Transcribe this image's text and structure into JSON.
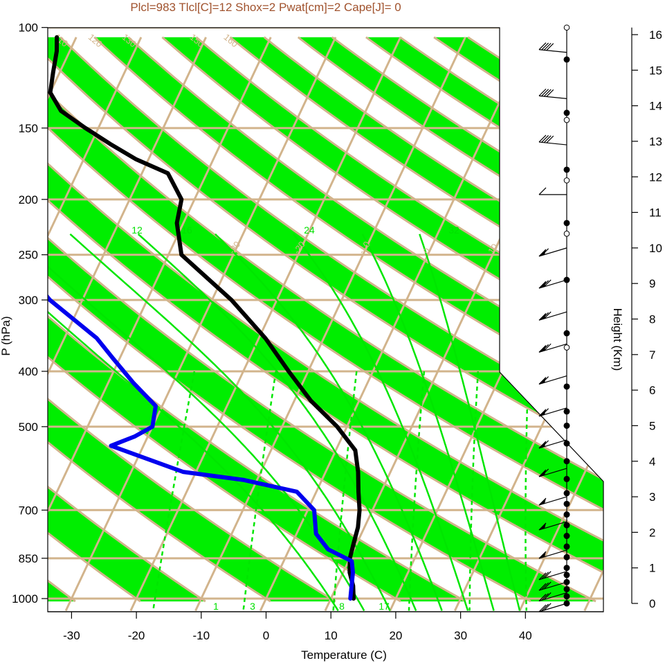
{
  "title": "Plcl=983 Tlcl[C]=12 Shox=2 Pwat[cm]=2 Cape[J]= 0",
  "colors": {
    "band": "#00ee00",
    "isopleth": "#d2b48c",
    "mixing_ratio": "#00e600",
    "temperature": "#000000",
    "dewpoint": "#0000ee",
    "title": "#a0522d"
  },
  "chart_data": {
    "type": "line",
    "subtype": "skew-T log-P sounding",
    "title": "Plcl=983 Tlcl[C]=12 Shox=2 Pwat[cm]=2 Cape[J]= 0",
    "xlabel": "Temperature (C)",
    "ylabel": "P (hPa)",
    "y2label": "Height (Km)",
    "xlim": [
      -33,
      52
    ],
    "ylim": [
      1050,
      100
    ],
    "yscale": "log",
    "x_ticks": [
      -30,
      -20,
      -10,
      0,
      10,
      20,
      30,
      40
    ],
    "y_ticks": [
      100,
      150,
      200,
      250,
      300,
      400,
      500,
      700,
      850,
      1000
    ],
    "height_ticks": [
      0,
      1,
      2,
      3,
      4,
      5,
      6,
      7,
      8,
      9,
      10,
      11,
      12,
      13,
      14,
      15,
      16
    ],
    "isotherm_labels": [
      -30,
      -20,
      -10,
      0,
      10,
      20,
      30
    ],
    "theta_labels": [
      30,
      40,
      50,
      60,
      70,
      80,
      90,
      100,
      110,
      120,
      130,
      150,
      160
    ],
    "mixing_ratio_top_labels": [
      12,
      16,
      24,
      32
    ],
    "mixing_ratio_bottom_labels": [
      1,
      3,
      8,
      17
    ],
    "series": [
      {
        "variable": "temperature",
        "points": [
          [
            1000,
            13.5
          ],
          [
            950,
            12.5
          ],
          [
            900,
            11.0
          ],
          [
            850,
            10.0
          ],
          [
            800,
            9.5
          ],
          [
            750,
            9.0
          ],
          [
            700,
            8.0
          ],
          [
            650,
            6.5
          ],
          [
            600,
            5.0
          ],
          [
            550,
            3.0
          ],
          [
            500,
            -1.5
          ],
          [
            450,
            -7.5
          ],
          [
            400,
            -13.0
          ],
          [
            350,
            -19.0
          ],
          [
            300,
            -27.0
          ],
          [
            250,
            -38.0
          ],
          [
            220,
            -41.0
          ],
          [
            200,
            -42.0
          ],
          [
            180,
            -46.0
          ],
          [
            170,
            -52.0
          ],
          [
            160,
            -57.0
          ],
          [
            150,
            -62.0
          ],
          [
            140,
            -67.0
          ],
          [
            130,
            -70.0
          ],
          [
            120,
            -71.0
          ],
          [
            110,
            -72.0
          ],
          [
            104,
            -73.0
          ]
        ]
      },
      {
        "variable": "dewpoint",
        "points": [
          [
            1000,
            13.0
          ],
          [
            900,
            11.5
          ],
          [
            860,
            10.5
          ],
          [
            820,
            6.0
          ],
          [
            770,
            3.0
          ],
          [
            700,
            1.0
          ],
          [
            650,
            -3.0
          ],
          [
            620,
            -12.0
          ],
          [
            600,
            -22.0
          ],
          [
            540,
            -35.0
          ],
          [
            520,
            -32.0
          ],
          [
            500,
            -30.0
          ],
          [
            460,
            -31.0
          ],
          [
            420,
            -36.0
          ],
          [
            380,
            -41.0
          ],
          [
            350,
            -45.0
          ],
          [
            300,
            -55.0
          ],
          [
            250,
            -64.0
          ],
          [
            220,
            -72.0
          ],
          [
            200,
            -78.0
          ],
          [
            185,
            -84.0
          ],
          [
            175,
            -88.0
          ],
          [
            150,
            -94.0
          ],
          [
            130,
            -99.0
          ],
          [
            104,
            -109.0
          ]
        ]
      }
    ],
    "wind_barbs": [
      {
        "km": 0.0,
        "barbs": 3
      },
      {
        "km": 0.3,
        "barbs": 3
      },
      {
        "km": 0.6,
        "barbs": 3
      },
      {
        "km": 0.9,
        "barbs": 3
      },
      {
        "km": 1.5,
        "barbs": 1
      },
      {
        "km": 2.3,
        "barbs": 1
      },
      {
        "km": 3.0,
        "barbs": 1
      },
      {
        "km": 3.8,
        "barbs": 2
      },
      {
        "km": 4.6,
        "barbs": 2
      },
      {
        "km": 5.5,
        "barbs": 2
      },
      {
        "km": 6.4,
        "barbs": 2
      },
      {
        "km": 7.3,
        "barbs": 3
      },
      {
        "km": 8.2,
        "barbs": 3
      },
      {
        "km": 9.1,
        "barbs": 3
      },
      {
        "km": 10.0,
        "barbs": 2
      },
      {
        "km": 11.5,
        "barbs": 1
      },
      {
        "km": 12.9,
        "barbs": 4
      },
      {
        "km": 14.2,
        "barbs": 4
      },
      {
        "km": 15.5,
        "barbs": 4
      }
    ],
    "height_dots_filled": [
      0,
      0.2,
      0.4,
      0.6,
      0.8,
      1.0,
      1.3,
      1.6,
      1.9,
      2.2,
      2.5,
      2.8,
      3.1,
      3.5,
      4.0,
      4.5,
      5.0,
      5.4,
      6.1,
      7.6,
      9.1,
      10.7,
      12.2,
      13.8,
      15.3
    ],
    "height_dots_open": [
      7.2,
      10.4,
      11.9,
      13.6,
      16.2
    ]
  }
}
